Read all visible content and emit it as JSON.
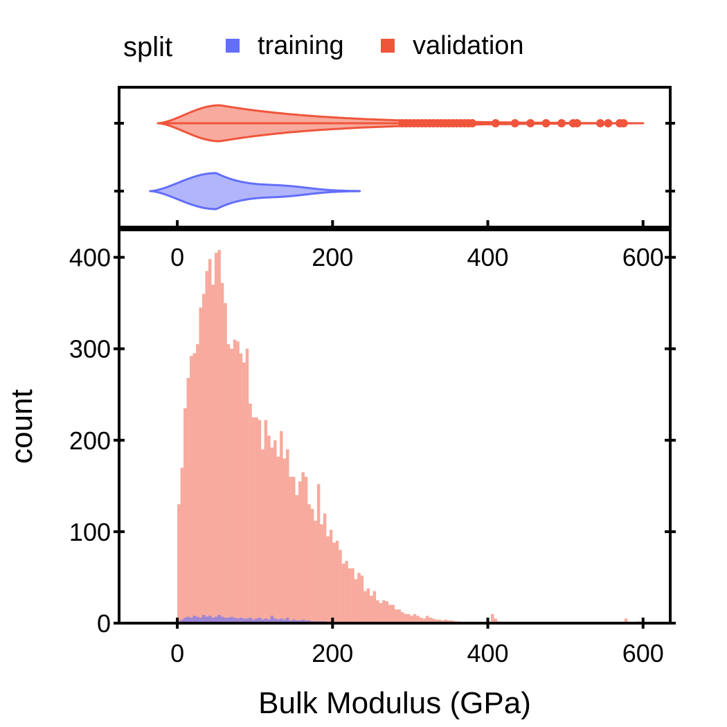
{
  "legend": {
    "title": "split",
    "items": [
      {
        "label": "training",
        "color": "#636efa"
      },
      {
        "label": "validation",
        "color": "#ef553b"
      }
    ]
  },
  "chart_data": [
    {
      "type": "violin",
      "orientation": "horizontal",
      "xlim": [
        -75,
        635
      ],
      "x_ticks": [
        0,
        200,
        400,
        600
      ],
      "x_tick_labels": [
        "0",
        "200",
        "400",
        "600"
      ],
      "grid": false,
      "series": [
        {
          "name": "validation",
          "color": "#ef553b",
          "range": [
            -25,
            600
          ],
          "mode": 55,
          "outliers": [
            290,
            295,
            300,
            305,
            310,
            315,
            320,
            325,
            330,
            335,
            340,
            345,
            350,
            355,
            360,
            365,
            370,
            375,
            380,
            410,
            435,
            455,
            475,
            495,
            510,
            515,
            545,
            555,
            570,
            575
          ]
        },
        {
          "name": "training",
          "color": "#636efa",
          "range": [
            -35,
            235
          ],
          "mode": 50,
          "outliers": []
        }
      ]
    },
    {
      "type": "histogram",
      "xlim": [
        -75,
        635
      ],
      "ylim": [
        0,
        430
      ],
      "xlabel": "Bulk Modulus (GPa)",
      "ylabel": "count",
      "x_ticks": [
        0,
        200,
        400,
        600
      ],
      "x_tick_labels": [
        "0",
        "200",
        "400",
        "600"
      ],
      "y_ticks": [
        0,
        100,
        200,
        300,
        400
      ],
      "y_tick_labels": [
        "0",
        "100",
        "200",
        "300",
        "400"
      ],
      "grid": false,
      "bin_start": 0,
      "bin_width": 4,
      "series": [
        {
          "name": "validation",
          "color": "#ef553b",
          "values": [
            130,
            170,
            235,
            268,
            292,
            295,
            305,
            345,
            360,
            385,
            398,
            370,
            405,
            408,
            372,
            350,
            305,
            300,
            310,
            308,
            295,
            285,
            300,
            240,
            225,
            225,
            222,
            190,
            222,
            205,
            192,
            200,
            182,
            210,
            180,
            190,
            160,
            160,
            140,
            155,
            165,
            160,
            130,
            125,
            112,
            152,
            108,
            120,
            95,
            102,
            88,
            90,
            80,
            65,
            68,
            60,
            60,
            48,
            55,
            52,
            35,
            38,
            30,
            35,
            25,
            22,
            25,
            24,
            20,
            20,
            15,
            15,
            12,
            10,
            10,
            8,
            10,
            8,
            6,
            5,
            8,
            6,
            5,
            4,
            4,
            3,
            4,
            3,
            3,
            2,
            2,
            1,
            1,
            1,
            1,
            1,
            1,
            1,
            1,
            1,
            1,
            10,
            5,
            2,
            1,
            1,
            1,
            1,
            1,
            1,
            1,
            1,
            1,
            1,
            1,
            1,
            1,
            1,
            1,
            1,
            1,
            1,
            1,
            1,
            1,
            1,
            1,
            1,
            1,
            1,
            1,
            1,
            1,
            1,
            1,
            1,
            1,
            1,
            1,
            1,
            1,
            1,
            1,
            1,
            5,
            1,
            1,
            1,
            2,
            1
          ]
        },
        {
          "name": "training",
          "color": "#636efa",
          "values": [
            2,
            4,
            6,
            7,
            6,
            8,
            7,
            6,
            9,
            7,
            8,
            6,
            7,
            9,
            7,
            6,
            6,
            7,
            6,
            5,
            6,
            5,
            5,
            6,
            4,
            5,
            6,
            4,
            5,
            4,
            8,
            5,
            4,
            5,
            4,
            6,
            3,
            4,
            3,
            3,
            4,
            3,
            3,
            2,
            2,
            2,
            2,
            2,
            1,
            1,
            1,
            1,
            1,
            1,
            1,
            1,
            1,
            1
          ]
        }
      ]
    }
  ]
}
